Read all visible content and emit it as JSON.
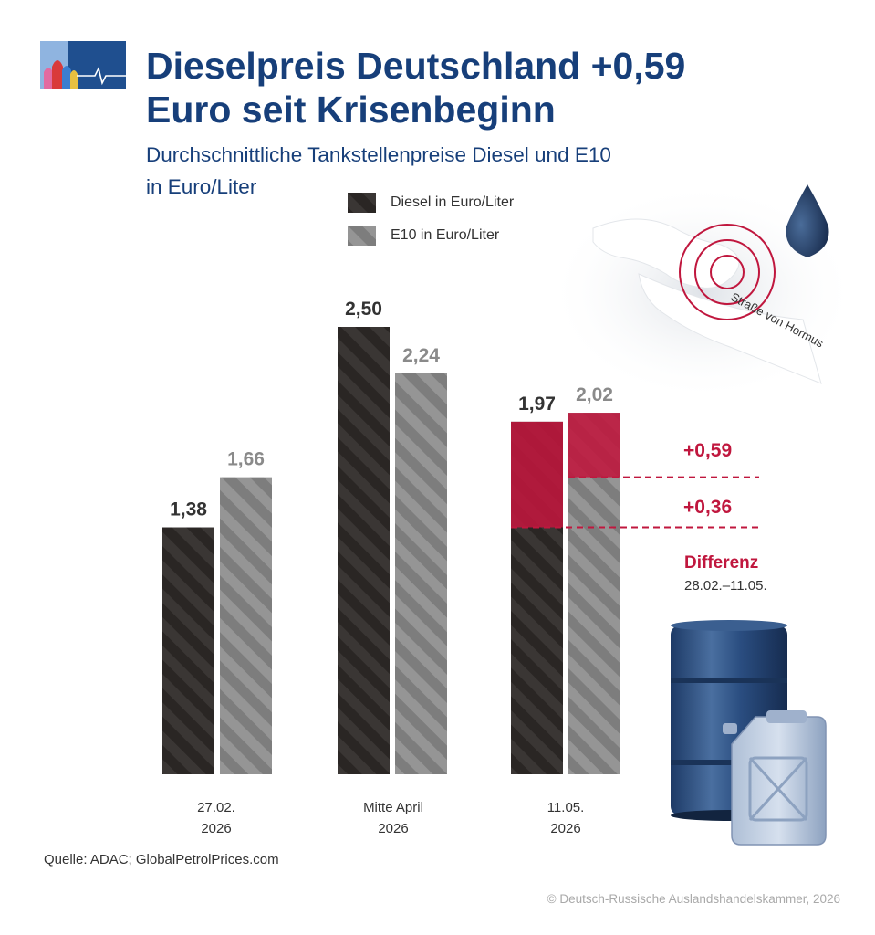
{
  "title_line1": "Dieselpreis Deutschland +0,59",
  "title_line2": "Euro seit Krisenbeginn",
  "subtitle_line1": "Durchschnittliche Tankstellenpreise Diesel und E10",
  "subtitle_line2": "in Euro/Liter",
  "map_label": "Straße von Hormus",
  "differenz": {
    "label": "Differenz",
    "range": "28.02.–11.05."
  },
  "source": "Quelle: ADAC; GlobalPetrolPrices.com",
  "copyright": "© Deutsch-Russische Auslandshandelskammer, 2026",
  "colors": {
    "accent": "#c0173e",
    "title": "#173f7a",
    "diesel": "#3a3634",
    "e10": "#8f8f8f"
  },
  "chart_data": {
    "type": "bar",
    "categories": [
      {
        "line1": "27.02.",
        "line2": "2026"
      },
      {
        "line1": "Mitte April",
        "line2": "2026"
      },
      {
        "line1": "11.05.",
        "line2": "2026"
      }
    ],
    "series": [
      {
        "name": "Diesel in Euro/Liter",
        "values": [
          1.38,
          2.5,
          1.97
        ],
        "labels": [
          "1,38",
          "2,50",
          "1,97"
        ]
      },
      {
        "name": "E10 in Euro/Liter",
        "values": [
          1.66,
          2.24,
          2.02
        ],
        "labels": [
          "1,66",
          "2,24",
          "2,02"
        ]
      }
    ],
    "annotations": [
      {
        "text": "+0,59",
        "series": "Diesel",
        "from": 1.38,
        "to": 1.97
      },
      {
        "text": "+0,36",
        "series": "E10",
        "from": 1.66,
        "to": 2.02
      }
    ],
    "ylim": [
      0,
      2.5
    ],
    "legend": "top-center",
    "grid": false
  }
}
